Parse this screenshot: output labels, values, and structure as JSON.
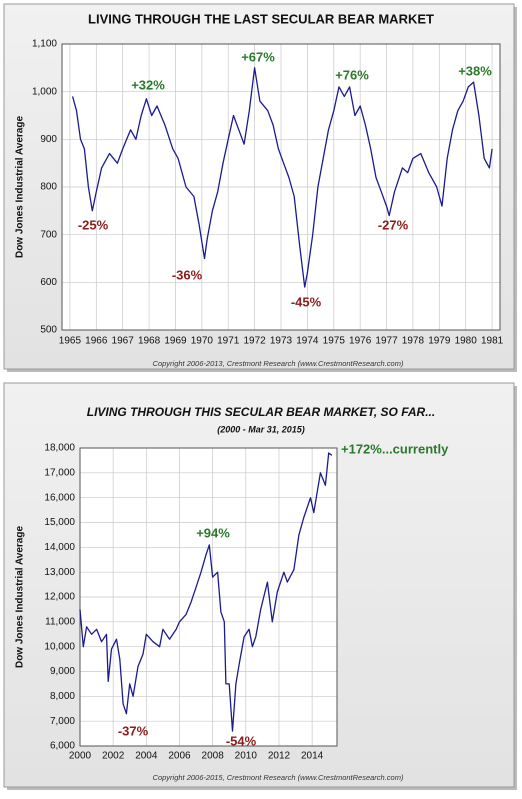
{
  "chart_data": [
    {
      "type": "line",
      "title": "LIVING THROUGH THE LAST SECULAR BEAR MARKET",
      "y_label": "Dow Jones Industrial Average",
      "copyright": "Copyright 2006-2013, Crestmont Research (www.CrestmontResearch.com)",
      "xlim": [
        1964.7,
        1981.3
      ],
      "xticks": [
        1965,
        1966,
        1967,
        1968,
        1969,
        1970,
        1971,
        1972,
        1973,
        1974,
        1975,
        1976,
        1977,
        1978,
        1979,
        1980,
        1981
      ],
      "ylim": [
        500,
        1100
      ],
      "yticks": [
        500,
        600,
        700,
        800,
        900,
        {
          "value": 1000,
          "label": "1,000"
        },
        {
          "value": 1100,
          "label": "1,100"
        }
      ],
      "grid": true,
      "series": [
        {
          "color": "#1b1b8f",
          "x": [
            1965.1,
            1965.25,
            1965.4,
            1965.55,
            1965.7,
            1965.85,
            1966.0,
            1966.2,
            1966.5,
            1966.8,
            1967.0,
            1967.3,
            1967.5,
            1967.7,
            1967.9,
            1968.1,
            1968.3,
            1968.6,
            1968.9,
            1969.1,
            1969.4,
            1969.7,
            1969.9,
            1970.1,
            1970.2,
            1970.4,
            1970.6,
            1970.8,
            1971.0,
            1971.2,
            1971.4,
            1971.6,
            1971.8,
            1972.0,
            1972.2,
            1972.5,
            1972.7,
            1972.9,
            1973.1,
            1973.3,
            1973.5,
            1973.7,
            1973.9,
            1974.0,
            1974.2,
            1974.4,
            1974.6,
            1974.8,
            1975.0,
            1975.2,
            1975.4,
            1975.6,
            1975.8,
            1976.0,
            1976.2,
            1976.4,
            1976.6,
            1976.8,
            1977.0,
            1977.1,
            1977.3,
            1977.6,
            1977.8,
            1978.0,
            1978.3,
            1978.6,
            1978.9,
            1979.1,
            1979.3,
            1979.5,
            1979.7,
            1979.9,
            1980.1,
            1980.3,
            1980.5,
            1980.7,
            1980.9,
            1981.0
          ],
          "values": [
            990,
            960,
            900,
            880,
            800,
            750,
            790,
            840,
            870,
            850,
            880,
            920,
            900,
            950,
            985,
            950,
            970,
            930,
            880,
            860,
            800,
            780,
            720,
            650,
            690,
            750,
            790,
            850,
            900,
            950,
            920,
            890,
            960,
            1050,
            980,
            960,
            930,
            880,
            850,
            820,
            780,
            680,
            590,
            620,
            700,
            800,
            860,
            920,
            960,
            1010,
            990,
            1010,
            950,
            970,
            930,
            880,
            820,
            790,
            760,
            740,
            790,
            840,
            830,
            860,
            870,
            830,
            800,
            760,
            860,
            920,
            960,
            980,
            1010,
            1020,
            950,
            860,
            840,
            880
          ]
        }
      ],
      "annotations": [
        {
          "text": "-25%",
          "color": "#8b1c1c"
        },
        {
          "text": "+32%",
          "color": "#2a7a2a"
        },
        {
          "text": "-36%",
          "color": "#8b1c1c"
        },
        {
          "text": "+67%",
          "color": "#2a7a2a"
        },
        {
          "text": "-45%",
          "color": "#8b1c1c"
        },
        {
          "text": "+76%",
          "color": "#2a7a2a"
        },
        {
          "text": "-27%",
          "color": "#8b1c1c"
        },
        {
          "text": "+38%",
          "color": "#2a7a2a"
        }
      ]
    },
    {
      "type": "line",
      "title": "LIVING THROUGH THIS SECULAR BEAR MARKET, SO FAR...",
      "subtitle": "(2000 - Mar 31, 2015)",
      "y_label": "Dow Jones Industrial Average",
      "copyright": "Copyright 2006-2015, Crestmont Research (www.CrestmontResearch.com)",
      "xlim": [
        2000,
        2015.5
      ],
      "xticks": [
        2000,
        2002,
        2004,
        2006,
        2008,
        2010,
        2012,
        2014
      ],
      "ylim": [
        6000,
        18000
      ],
      "yticks": [
        {
          "value": 6000,
          "label": "6,000"
        },
        {
          "value": 7000,
          "label": "7,000"
        },
        {
          "value": 8000,
          "label": "8,000"
        },
        {
          "value": 9000,
          "label": "9,000"
        },
        {
          "value": 10000,
          "label": "10,000"
        },
        {
          "value": 11000,
          "label": "11,000"
        },
        {
          "value": 12000,
          "label": "12,000"
        },
        {
          "value": 13000,
          "label": "13,000"
        },
        {
          "value": 14000,
          "label": "14,000"
        },
        {
          "value": 15000,
          "label": "15,000"
        },
        {
          "value": 16000,
          "label": "16,000"
        },
        {
          "value": 17000,
          "label": "17,000"
        },
        {
          "value": 18000,
          "label": "18,000"
        }
      ],
      "grid": true,
      "series": [
        {
          "color": "#1b1b8f",
          "x": [
            2000.0,
            2000.2,
            2000.4,
            2000.7,
            2001.0,
            2001.3,
            2001.6,
            2001.7,
            2001.9,
            2002.2,
            2002.4,
            2002.6,
            2002.8,
            2003.0,
            2003.2,
            2003.5,
            2003.8,
            2004.0,
            2004.4,
            2004.8,
            2005.0,
            2005.4,
            2005.8,
            2006.0,
            2006.4,
            2006.7,
            2007.0,
            2007.3,
            2007.6,
            2007.8,
            2008.0,
            2008.3,
            2008.5,
            2008.7,
            2008.8,
            2009.0,
            2009.2,
            2009.4,
            2009.6,
            2009.9,
            2010.2,
            2010.4,
            2010.6,
            2010.9,
            2011.3,
            2011.6,
            2011.9,
            2012.3,
            2012.5,
            2012.9,
            2013.2,
            2013.5,
            2013.9,
            2014.1,
            2014.5,
            2014.8,
            2015.0,
            2015.2
          ],
          "values": [
            11500,
            10000,
            10800,
            10500,
            10700,
            10200,
            10500,
            8600,
            9900,
            10300,
            9500,
            7700,
            7300,
            8500,
            8000,
            9200,
            9700,
            10500,
            10200,
            10000,
            10700,
            10300,
            10700,
            11000,
            11300,
            11800,
            12400,
            13000,
            13700,
            14100,
            12800,
            13000,
            11400,
            11000,
            8500,
            8500,
            6600,
            8500,
            9300,
            10400,
            10700,
            10000,
            10400,
            11500,
            12600,
            11000,
            12200,
            13000,
            12600,
            13100,
            14500,
            15200,
            16000,
            15400,
            17000,
            16500,
            17800,
            17700
          ]
        }
      ],
      "annotations": [
        {
          "text": "+94%",
          "color": "#2a7a2a"
        },
        {
          "text": "-37%",
          "color": "#8b1c1c"
        },
        {
          "text": "-54%",
          "color": "#8b1c1c"
        },
        {
          "text": "+172%...currently",
          "color": "#2a7a2a"
        }
      ]
    }
  ]
}
